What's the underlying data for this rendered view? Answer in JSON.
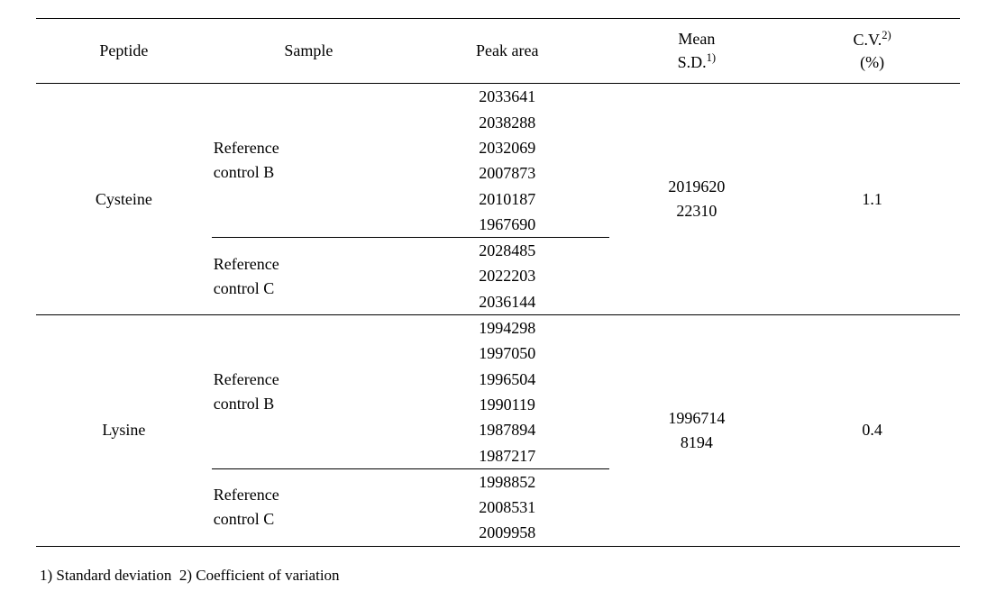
{
  "headers": {
    "peptide": "Peptide",
    "sample": "Sample",
    "peak_area": "Peak area",
    "mean_sd_line1": "Mean",
    "mean_sd_line2": "S.D.",
    "mean_sd_sup": "1)",
    "cv_line1": "C.V.",
    "cv_sup": "2)",
    "cv_line2": "(%)"
  },
  "col_widths": [
    "19%",
    "21%",
    "22%",
    "19%",
    "19%"
  ],
  "rows": [
    {
      "peptide": "Cysteine",
      "mean": "2019620",
      "sd": "22310",
      "cv": "1.1",
      "samples": [
        {
          "name_l1": "Reference",
          "name_l2": "control B",
          "peaks": [
            "2033641",
            "2038288",
            "2032069",
            "2007873",
            "2010187",
            "1967690"
          ]
        },
        {
          "name_l1": "Reference",
          "name_l2": "control C",
          "peaks": [
            "2028485",
            "2022203",
            "2036144"
          ]
        }
      ]
    },
    {
      "peptide": "Lysine",
      "mean": "1996714",
      "sd": "8194",
      "cv": "0.4",
      "samples": [
        {
          "name_l1": "Reference",
          "name_l2": "control B",
          "peaks": [
            "1994298",
            "1997050",
            "1996504",
            "1990119",
            "1987894",
            "1987217"
          ]
        },
        {
          "name_l1": "Reference",
          "name_l2": "control C",
          "peaks": [
            "1998852",
            "2008531",
            "2009958"
          ]
        }
      ]
    }
  ],
  "footnote": {
    "fn1_num": "1)",
    "fn1_text": "Standard deviation",
    "fn2_num": "2)",
    "fn2_text": "Coefficient of variation"
  },
  "style": {
    "body_bg": "#ffffff",
    "text_color": "#000000",
    "border_color": "#000000",
    "font_family": "Georgia, 'Times New Roman', serif",
    "base_fontsize": 18
  }
}
